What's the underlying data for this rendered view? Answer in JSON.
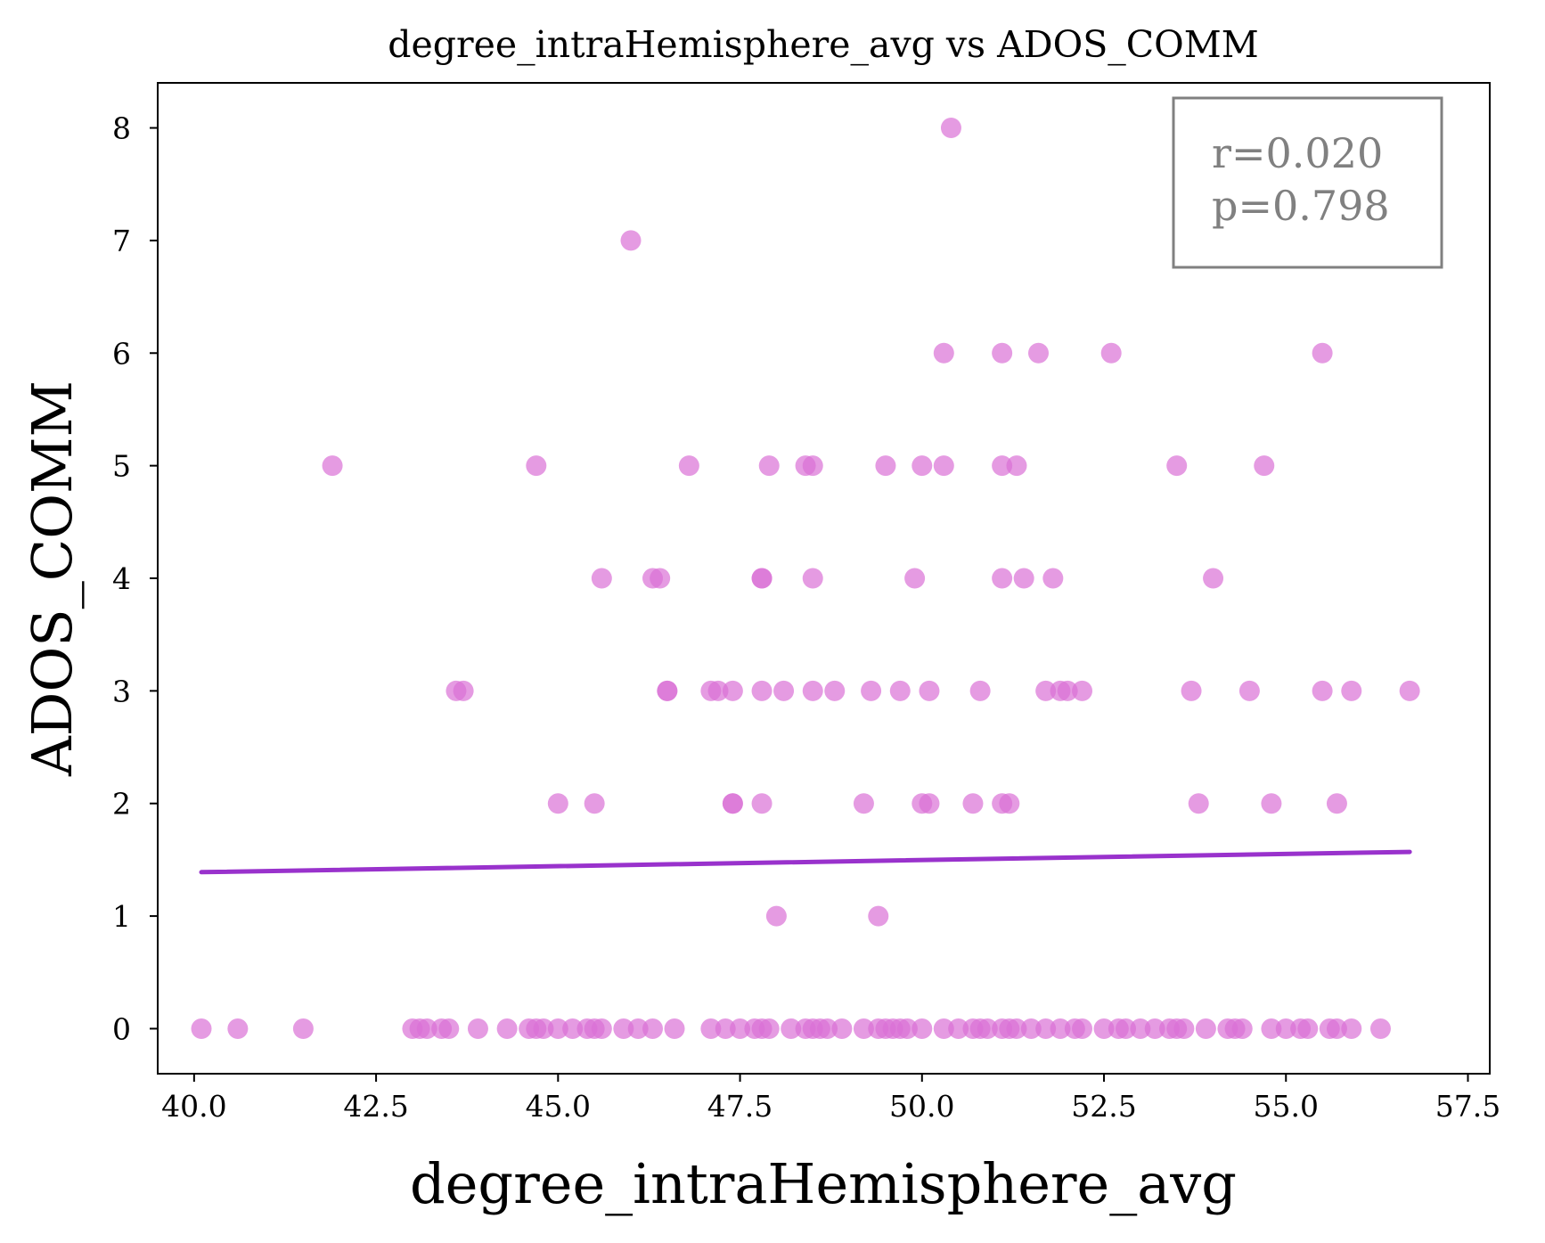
{
  "chart_data": {
    "type": "scatter",
    "title": "degree_intraHemisphere_avg vs ADOS_COMM",
    "xlabel": "degree_intraHemisphere_avg",
    "ylabel": "ADOS_COMM",
    "xlim": [
      39.5,
      57.8
    ],
    "ylim": [
      -0.4,
      8.4
    ],
    "xticks": [
      40.0,
      42.5,
      45.0,
      47.5,
      50.0,
      52.5,
      55.0,
      57.5
    ],
    "xtick_labels": [
      "40.0",
      "42.5",
      "45.0",
      "47.5",
      "50.0",
      "52.5",
      "55.0",
      "57.5"
    ],
    "yticks": [
      0,
      1,
      2,
      3,
      4,
      5,
      6,
      7,
      8
    ],
    "ytick_labels": [
      "0",
      "1",
      "2",
      "3",
      "4",
      "5",
      "6",
      "7",
      "8"
    ],
    "grid": false,
    "point_color": "#da70d6",
    "line_color": "#9932cc",
    "stats": {
      "r": "r=0.020",
      "p": "p=0.798"
    },
    "stats_placement": "top-right",
    "fit_line": {
      "x": [
        40.1,
        56.7
      ],
      "y": [
        1.39,
        1.57
      ]
    },
    "points": [
      {
        "x": 50.4,
        "y": 8
      },
      {
        "x": 46.0,
        "y": 7
      },
      {
        "x": 50.3,
        "y": 6
      },
      {
        "x": 51.1,
        "y": 6
      },
      {
        "x": 51.6,
        "y": 6
      },
      {
        "x": 52.6,
        "y": 6
      },
      {
        "x": 55.5,
        "y": 6
      },
      {
        "x": 41.9,
        "y": 5
      },
      {
        "x": 44.7,
        "y": 5
      },
      {
        "x": 46.8,
        "y": 5
      },
      {
        "x": 47.9,
        "y": 5
      },
      {
        "x": 48.4,
        "y": 5
      },
      {
        "x": 48.5,
        "y": 5
      },
      {
        "x": 49.5,
        "y": 5
      },
      {
        "x": 50.0,
        "y": 5
      },
      {
        "x": 50.3,
        "y": 5
      },
      {
        "x": 51.1,
        "y": 5
      },
      {
        "x": 51.3,
        "y": 5
      },
      {
        "x": 53.5,
        "y": 5
      },
      {
        "x": 54.7,
        "y": 5
      },
      {
        "x": 45.6,
        "y": 4
      },
      {
        "x": 46.3,
        "y": 4
      },
      {
        "x": 46.4,
        "y": 4
      },
      {
        "x": 47.8,
        "y": 4
      },
      {
        "x": 47.8,
        "y": 4
      },
      {
        "x": 48.5,
        "y": 4
      },
      {
        "x": 49.9,
        "y": 4
      },
      {
        "x": 51.1,
        "y": 4
      },
      {
        "x": 51.4,
        "y": 4
      },
      {
        "x": 51.8,
        "y": 4
      },
      {
        "x": 54.0,
        "y": 4
      },
      {
        "x": 43.6,
        "y": 3
      },
      {
        "x": 43.7,
        "y": 3
      },
      {
        "x": 46.5,
        "y": 3
      },
      {
        "x": 46.5,
        "y": 3
      },
      {
        "x": 47.1,
        "y": 3
      },
      {
        "x": 47.2,
        "y": 3
      },
      {
        "x": 47.4,
        "y": 3
      },
      {
        "x": 47.8,
        "y": 3
      },
      {
        "x": 48.1,
        "y": 3
      },
      {
        "x": 48.5,
        "y": 3
      },
      {
        "x": 48.8,
        "y": 3
      },
      {
        "x": 49.3,
        "y": 3
      },
      {
        "x": 49.7,
        "y": 3
      },
      {
        "x": 50.1,
        "y": 3
      },
      {
        "x": 50.8,
        "y": 3
      },
      {
        "x": 51.7,
        "y": 3
      },
      {
        "x": 51.9,
        "y": 3
      },
      {
        "x": 52.0,
        "y": 3
      },
      {
        "x": 52.2,
        "y": 3
      },
      {
        "x": 53.7,
        "y": 3
      },
      {
        "x": 54.5,
        "y": 3
      },
      {
        "x": 55.5,
        "y": 3
      },
      {
        "x": 55.9,
        "y": 3
      },
      {
        "x": 56.7,
        "y": 3
      },
      {
        "x": 45.0,
        "y": 2
      },
      {
        "x": 45.5,
        "y": 2
      },
      {
        "x": 47.4,
        "y": 2
      },
      {
        "x": 47.4,
        "y": 2
      },
      {
        "x": 47.8,
        "y": 2
      },
      {
        "x": 49.2,
        "y": 2
      },
      {
        "x": 50.0,
        "y": 2
      },
      {
        "x": 50.1,
        "y": 2
      },
      {
        "x": 50.7,
        "y": 2
      },
      {
        "x": 51.1,
        "y": 2
      },
      {
        "x": 51.2,
        "y": 2
      },
      {
        "x": 53.8,
        "y": 2
      },
      {
        "x": 54.8,
        "y": 2
      },
      {
        "x": 55.7,
        "y": 2
      },
      {
        "x": 48.0,
        "y": 1
      },
      {
        "x": 49.4,
        "y": 1
      },
      {
        "x": 40.1,
        "y": 0
      },
      {
        "x": 40.6,
        "y": 0
      },
      {
        "x": 41.5,
        "y": 0
      },
      {
        "x": 43.0,
        "y": 0
      },
      {
        "x": 43.1,
        "y": 0
      },
      {
        "x": 43.2,
        "y": 0
      },
      {
        "x": 43.4,
        "y": 0
      },
      {
        "x": 43.5,
        "y": 0
      },
      {
        "x": 43.9,
        "y": 0
      },
      {
        "x": 44.3,
        "y": 0
      },
      {
        "x": 44.6,
        "y": 0
      },
      {
        "x": 44.7,
        "y": 0
      },
      {
        "x": 44.8,
        "y": 0
      },
      {
        "x": 45.0,
        "y": 0
      },
      {
        "x": 45.2,
        "y": 0
      },
      {
        "x": 45.4,
        "y": 0
      },
      {
        "x": 45.5,
        "y": 0
      },
      {
        "x": 45.6,
        "y": 0
      },
      {
        "x": 45.9,
        "y": 0
      },
      {
        "x": 46.1,
        "y": 0
      },
      {
        "x": 46.3,
        "y": 0
      },
      {
        "x": 46.6,
        "y": 0
      },
      {
        "x": 47.1,
        "y": 0
      },
      {
        "x": 47.3,
        "y": 0
      },
      {
        "x": 47.5,
        "y": 0
      },
      {
        "x": 47.7,
        "y": 0
      },
      {
        "x": 47.8,
        "y": 0
      },
      {
        "x": 47.9,
        "y": 0
      },
      {
        "x": 48.2,
        "y": 0
      },
      {
        "x": 48.4,
        "y": 0
      },
      {
        "x": 48.5,
        "y": 0
      },
      {
        "x": 48.6,
        "y": 0
      },
      {
        "x": 48.7,
        "y": 0
      },
      {
        "x": 48.9,
        "y": 0
      },
      {
        "x": 49.2,
        "y": 0
      },
      {
        "x": 49.4,
        "y": 0
      },
      {
        "x": 49.5,
        "y": 0
      },
      {
        "x": 49.6,
        "y": 0
      },
      {
        "x": 49.7,
        "y": 0
      },
      {
        "x": 49.8,
        "y": 0
      },
      {
        "x": 50.0,
        "y": 0
      },
      {
        "x": 50.3,
        "y": 0
      },
      {
        "x": 50.5,
        "y": 0
      },
      {
        "x": 50.7,
        "y": 0
      },
      {
        "x": 50.8,
        "y": 0
      },
      {
        "x": 50.9,
        "y": 0
      },
      {
        "x": 51.1,
        "y": 0
      },
      {
        "x": 51.2,
        "y": 0
      },
      {
        "x": 51.3,
        "y": 0
      },
      {
        "x": 51.5,
        "y": 0
      },
      {
        "x": 51.7,
        "y": 0
      },
      {
        "x": 51.9,
        "y": 0
      },
      {
        "x": 52.1,
        "y": 0
      },
      {
        "x": 52.2,
        "y": 0
      },
      {
        "x": 52.5,
        "y": 0
      },
      {
        "x": 52.7,
        "y": 0
      },
      {
        "x": 52.8,
        "y": 0
      },
      {
        "x": 53.0,
        "y": 0
      },
      {
        "x": 53.2,
        "y": 0
      },
      {
        "x": 53.4,
        "y": 0
      },
      {
        "x": 53.5,
        "y": 0
      },
      {
        "x": 53.6,
        "y": 0
      },
      {
        "x": 53.9,
        "y": 0
      },
      {
        "x": 54.2,
        "y": 0
      },
      {
        "x": 54.3,
        "y": 0
      },
      {
        "x": 54.4,
        "y": 0
      },
      {
        "x": 54.8,
        "y": 0
      },
      {
        "x": 55.0,
        "y": 0
      },
      {
        "x": 55.2,
        "y": 0
      },
      {
        "x": 55.3,
        "y": 0
      },
      {
        "x": 55.6,
        "y": 0
      },
      {
        "x": 55.7,
        "y": 0
      },
      {
        "x": 55.9,
        "y": 0
      },
      {
        "x": 56.3,
        "y": 0
      }
    ]
  }
}
